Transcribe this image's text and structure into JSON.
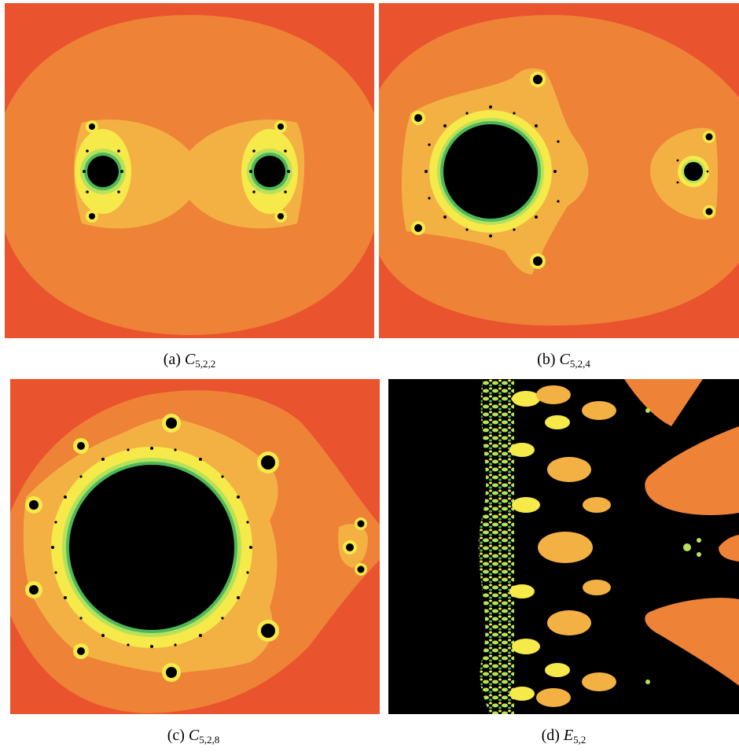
{
  "panels": [
    {
      "id": "a",
      "label": "(a)",
      "symbol": "C",
      "subscript": "5,2,2"
    },
    {
      "id": "b",
      "label": "(b)",
      "symbol": "C",
      "subscript": "5,2,4"
    },
    {
      "id": "c",
      "label": "(c)",
      "symbol": "C",
      "subscript": "5,2,8"
    },
    {
      "id": "d",
      "label": "(d)",
      "symbol": "E",
      "subscript": "5,2"
    }
  ],
  "colors": {
    "outer": "#e9532e",
    "band1": "#ee8236",
    "band2": "#f3b143",
    "band3": "#f6e94a",
    "band4": "#b6e25a",
    "band5": "#4cb85a",
    "interior": "#000000"
  }
}
